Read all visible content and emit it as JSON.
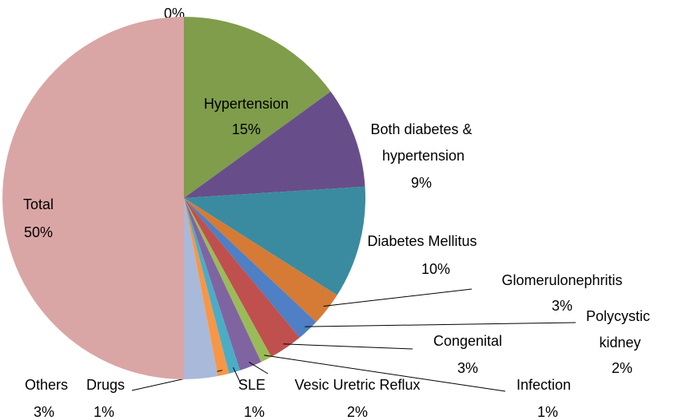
{
  "chart_data": {
    "type": "pie",
    "categories": [
      null,
      "Hypertension",
      "Both diabetes & hypertension",
      "Diabetes Mellitus",
      "Glomerulonephritis",
      "Polycystic kidney",
      "Congenital",
      "Infection",
      "Vesic Uretric Reflux",
      "SLE",
      "Drugs",
      "Others",
      "Total"
    ],
    "values": [
      0,
      15,
      9,
      10,
      3,
      2,
      3,
      1,
      2,
      1,
      1,
      3,
      50
    ],
    "value_labels": [
      "0%",
      "15%",
      "9%",
      "10%",
      "3%",
      "2%",
      "3%",
      "1%",
      "2%",
      "1%",
      "1%",
      "3%",
      "50%"
    ],
    "colors": [
      "#4f81bd",
      "#7f9d4b",
      "#674e8a",
      "#3a8ba0",
      "#d57b36",
      "#4f7fc4",
      "#c0504d",
      "#9bbb59",
      "#8064a2",
      "#4bacc6",
      "#f79646",
      "#a9b9d9",
      "#d9a6a5"
    ]
  }
}
